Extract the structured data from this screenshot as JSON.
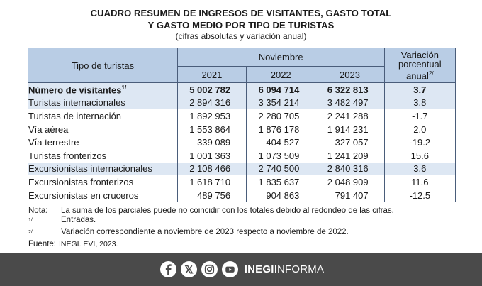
{
  "title": {
    "line1": "Cuadro resumen de ingresos de visitantes, gasto total",
    "line2": "y gasto medio por tipo de turistas",
    "subtitle": "(cifras absolutas y variación anual)"
  },
  "table": {
    "header_tipo": "Tipo de turistas",
    "header_period": "Noviembre",
    "years": [
      "2021",
      "2022",
      "2023"
    ],
    "header_var": "Variación porcentual anual",
    "header_var_note": "2/",
    "rows": [
      {
        "label": "Número de visitantes",
        "note": "1/",
        "v2021": "5 002 782",
        "v2022": "6 094 714",
        "v2023": "6 322 813",
        "var": "3.7"
      },
      {
        "label": "Turistas internacionales",
        "v2021": "2 894 316",
        "v2022": "3 354 214",
        "v2023": "3 482 497",
        "var": "3.8"
      },
      {
        "label": "Turistas de internación",
        "v2021": "1 892 953",
        "v2022": "2 280 705",
        "v2023": "2 241 288",
        "var": "-1.7"
      },
      {
        "label": "Vía aérea",
        "v2021": "1 553 864",
        "v2022": "1 876 178",
        "v2023": "1 914 231",
        "var": "2.0"
      },
      {
        "label": "Vía terrestre",
        "v2021": "339 089",
        "v2022": "404 527",
        "v2023": "327 057",
        "var": "-19.2"
      },
      {
        "label": "Turistas fronterizos",
        "v2021": "1 001 363",
        "v2022": "1 073 509",
        "v2023": "1 241 209",
        "var": "15.6"
      },
      {
        "label": "Excursionistas internacionales",
        "v2021": "2 108 466",
        "v2022": "2 740 500",
        "v2023": "2 840 316",
        "var": "3.6"
      },
      {
        "label": "Excursionistas fronterizos",
        "v2021": "1 618 710",
        "v2022": "1 835 637",
        "v2023": "2 048 909",
        "var": "11.6"
      },
      {
        "label": "Excursionistas en cruceros",
        "v2021": "489 756",
        "v2022": "904 863",
        "v2023": "791 407",
        "var": "-12.5"
      }
    ]
  },
  "notes": {
    "nota_key": "Nota:",
    "nota_text": "La suma de los parciales puede no coincidir con los totales debido al redondeo de las cifras.",
    "n1_key": "1/",
    "n1_text": "Entradas.",
    "n2_key": "2/",
    "n2_text": "Variación correspondiente a noviembre de 2023 respecto a noviembre de 2022.",
    "fuente_key": "Fuente:",
    "fuente_text": "INEGI. EVI, 2023."
  },
  "footer": {
    "icons": [
      "facebook-icon",
      "x-icon",
      "instagram-icon",
      "youtube-icon"
    ],
    "brand_bold": "INEGI",
    "brand_light": "INFORMA"
  }
}
